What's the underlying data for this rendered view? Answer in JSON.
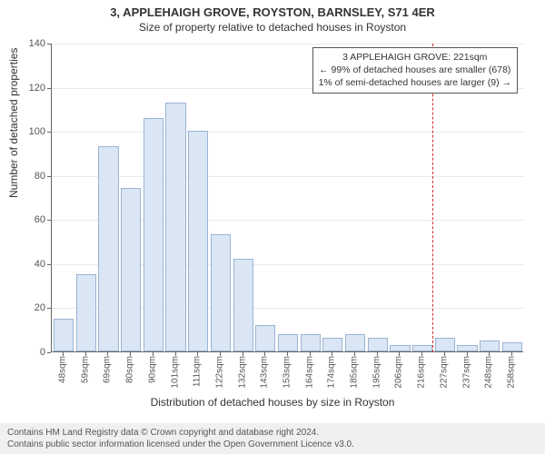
{
  "title_main": "3, APPLEHAIGH GROVE, ROYSTON, BARNSLEY, S71 4ER",
  "title_sub": "Size of property relative to detached houses in Royston",
  "ylabel": "Number of detached properties",
  "xlabel": "Distribution of detached houses by size in Royston",
  "chart": {
    "type": "histogram",
    "y_max": 140,
    "y_tick_step": 20,
    "bar_fill": "#dbe6f4",
    "bar_border": "#98b4d4",
    "grid_color": "#e9e9e9",
    "axis_color": "#666666",
    "background": "#ffffff",
    "bars": [
      {
        "label": "48sqm",
        "value": 15
      },
      {
        "label": "59sqm",
        "value": 35
      },
      {
        "label": "69sqm",
        "value": 93
      },
      {
        "label": "80sqm",
        "value": 74
      },
      {
        "label": "90sqm",
        "value": 106
      },
      {
        "label": "101sqm",
        "value": 113
      },
      {
        "label": "111sqm",
        "value": 100
      },
      {
        "label": "122sqm",
        "value": 53
      },
      {
        "label": "132sqm",
        "value": 42
      },
      {
        "label": "143sqm",
        "value": 12
      },
      {
        "label": "153sqm",
        "value": 8
      },
      {
        "label": "164sqm",
        "value": 8
      },
      {
        "label": "174sqm",
        "value": 6
      },
      {
        "label": "185sqm",
        "value": 8
      },
      {
        "label": "195sqm",
        "value": 6
      },
      {
        "label": "206sqm",
        "value": 3
      },
      {
        "label": "216sqm",
        "value": 3
      },
      {
        "label": "227sqm",
        "value": 6
      },
      {
        "label": "237sqm",
        "value": 3
      },
      {
        "label": "248sqm",
        "value": 5
      },
      {
        "label": "258sqm",
        "value": 4
      }
    ],
    "marker": {
      "value_sqm": 221,
      "color": "#d03030"
    }
  },
  "info_box": {
    "line1": "3 APPLEHAIGH GROVE: 221sqm",
    "line2": "← 99% of detached houses are smaller (678)",
    "line3": "1% of semi-detached houses are larger (9) →"
  },
  "footer": {
    "line1": "Contains HM Land Registry data © Crown copyright and database right 2024.",
    "line2": "Contains public sector information licensed under the Open Government Licence v3.0."
  }
}
